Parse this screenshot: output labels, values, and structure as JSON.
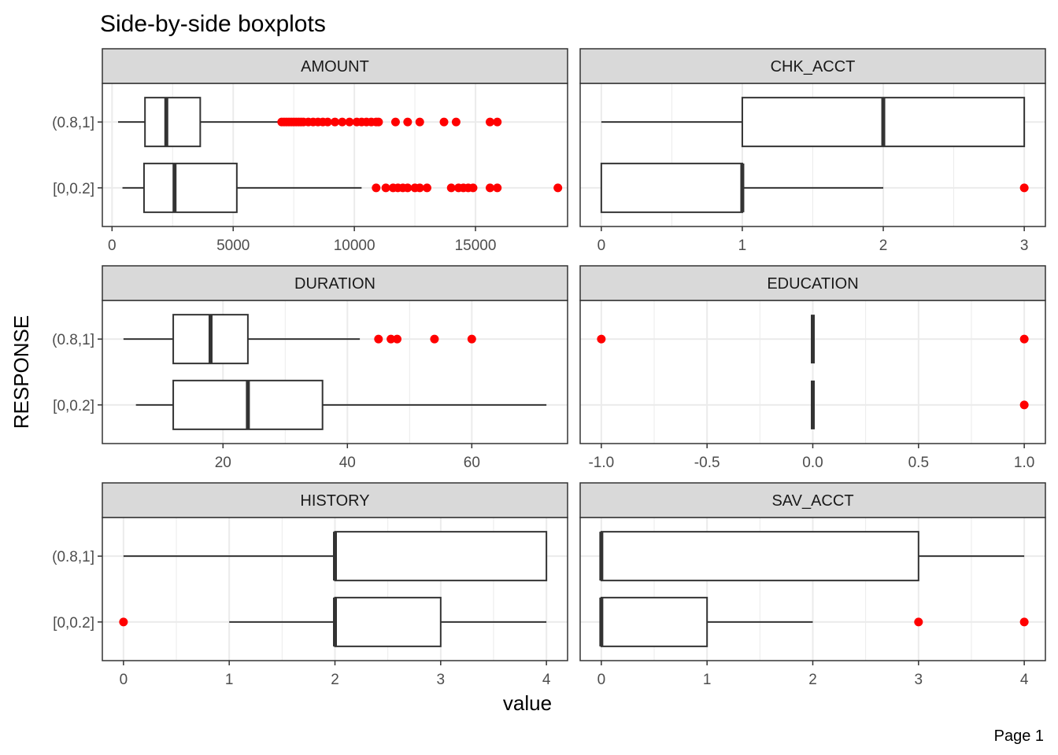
{
  "chart_data": {
    "type": "boxplot",
    "title": "Side-by-side boxplots",
    "xlabel": "value",
    "ylabel": "RESPONSE",
    "page_label": "Page 1",
    "categories": [
      "(0.8,1]",
      "[0,0.2]"
    ],
    "colors": {
      "outlier": "#ff0000",
      "box_stroke": "#333333",
      "strip_fill": "#d9d9d9",
      "grid": "#ebebeb"
    },
    "panels": [
      {
        "name": "AMOUNT",
        "xlim": [
          -400,
          18800
        ],
        "ticks": [
          0,
          5000,
          10000,
          15000
        ],
        "tick_labels": [
          "0",
          "5000",
          "10000",
          "15000"
        ],
        "boxes": [
          {
            "category": "(0.8,1]",
            "whisker_low": 250,
            "q1": 1360,
            "median": 2240,
            "q3": 3640,
            "whisker_high": 6950,
            "outliers": [
              7000,
              7100,
              7200,
              7300,
              7400,
              7500,
              7600,
              7700,
              7800,
              7900,
              8100,
              8300,
              8500,
              8700,
              8900,
              9200,
              9500,
              9800,
              10100,
              10300,
              10500,
              10700,
              10900,
              11000,
              11700,
              12200,
              12700,
              13700,
              14200,
              15600,
              15900
            ]
          },
          {
            "category": "[0,0.2]",
            "whisker_low": 430,
            "q1": 1320,
            "median": 2580,
            "q3": 5150,
            "whisker_high": 10300,
            "outliers": [
              10900,
              11300,
              11600,
              11800,
              12000,
              12200,
              12500,
              12700,
              13000,
              14000,
              14300,
              14500,
              14700,
              14900,
              15600,
              15900,
              18400
            ]
          }
        ]
      },
      {
        "name": "CHK_ACCT",
        "xlim": [
          -0.15,
          3.15
        ],
        "ticks": [
          0,
          1,
          2,
          3
        ],
        "tick_labels": [
          "0",
          "1",
          "2",
          "3"
        ],
        "boxes": [
          {
            "category": "(0.8,1]",
            "whisker_low": 0,
            "q1": 1,
            "median": 2,
            "q3": 3,
            "whisker_high": 3,
            "outliers": []
          },
          {
            "category": "[0,0.2]",
            "whisker_low": 0,
            "q1": 0,
            "median": 1,
            "q3": 1,
            "whisker_high": 2,
            "outliers": [
              3
            ]
          }
        ]
      },
      {
        "name": "DURATION",
        "xlim": [
          0.6,
          75.4
        ],
        "ticks": [
          20,
          40,
          60
        ],
        "tick_labels": [
          "20",
          "40",
          "60"
        ],
        "boxes": [
          {
            "category": "(0.8,1]",
            "whisker_low": 4,
            "q1": 12,
            "median": 18,
            "q3": 24,
            "whisker_high": 42,
            "outliers": [
              45,
              47,
              48,
              54,
              60
            ]
          },
          {
            "category": "[0,0.2]",
            "whisker_low": 6,
            "q1": 12,
            "median": 24,
            "q3": 36,
            "whisker_high": 72,
            "outliers": []
          }
        ]
      },
      {
        "name": "EDUCATION",
        "xlim": [
          -1.1,
          1.1
        ],
        "ticks": [
          -1,
          -0.5,
          0,
          0.5,
          1
        ],
        "tick_labels": [
          "-1.0",
          "-0.5",
          "0.0",
          "0.5",
          "1.0"
        ],
        "boxes": [
          {
            "category": "(0.8,1]",
            "whisker_low": 0,
            "q1": 0,
            "median": 0,
            "q3": 0,
            "whisker_high": 0,
            "outliers": [
              -1,
              1
            ]
          },
          {
            "category": "[0,0.2]",
            "whisker_low": 0,
            "q1": 0,
            "median": 0,
            "q3": 0,
            "whisker_high": 0,
            "outliers": [
              1
            ]
          }
        ]
      },
      {
        "name": "HISTORY",
        "xlim": [
          -0.2,
          4.2
        ],
        "ticks": [
          0,
          1,
          2,
          3,
          4
        ],
        "tick_labels": [
          "0",
          "1",
          "2",
          "3",
          "4"
        ],
        "boxes": [
          {
            "category": "(0.8,1]",
            "whisker_low": 0,
            "q1": 2,
            "median": 2,
            "q3": 4,
            "whisker_high": 4,
            "outliers": []
          },
          {
            "category": "[0,0.2]",
            "whisker_low": 1,
            "q1": 2,
            "median": 2,
            "q3": 3,
            "whisker_high": 4,
            "outliers": [
              0
            ]
          }
        ]
      },
      {
        "name": "SAV_ACCT",
        "xlim": [
          -0.2,
          4.2
        ],
        "ticks": [
          0,
          1,
          2,
          3,
          4
        ],
        "tick_labels": [
          "0",
          "1",
          "2",
          "3",
          "4"
        ],
        "boxes": [
          {
            "category": "(0.8,1]",
            "whisker_low": 0,
            "q1": 0,
            "median": 0,
            "q3": 3,
            "whisker_high": 4,
            "outliers": []
          },
          {
            "category": "[0,0.2]",
            "whisker_low": 0,
            "q1": 0,
            "median": 0,
            "q3": 1,
            "whisker_high": 2,
            "outliers": [
              3,
              4
            ]
          }
        ]
      }
    ]
  }
}
